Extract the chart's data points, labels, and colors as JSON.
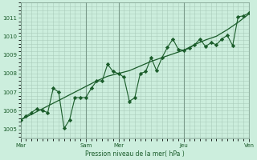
{
  "background_color": "#cceedd",
  "grid_color": "#aaccbb",
  "line_color": "#1a5c2a",
  "marker_color": "#1a5c2a",
  "xlabel": "Pression niveau de la mer( hPa )",
  "ylim": [
    1004.5,
    1011.8
  ],
  "yticks": [
    1005,
    1006,
    1007,
    1008,
    1009,
    1010,
    1011
  ],
  "xlim": [
    0,
    42
  ],
  "xtick_labels": [
    "Mar",
    "Sam",
    "Mer",
    "Jeu",
    "Ven"
  ],
  "xtick_positions": [
    0,
    12,
    18,
    30,
    42
  ],
  "vline_positions": [
    0,
    12,
    18,
    30,
    42
  ],
  "smooth_x": [
    0,
    2,
    4,
    6,
    8,
    10,
    12,
    14,
    16,
    18,
    20,
    22,
    24,
    26,
    28,
    30,
    32,
    34,
    36,
    38,
    40,
    42
  ],
  "smooth_y": [
    1005.5,
    1005.8,
    1006.1,
    1006.4,
    1006.7,
    1007.0,
    1007.3,
    1007.6,
    1007.85,
    1008.0,
    1008.15,
    1008.4,
    1008.65,
    1008.85,
    1009.05,
    1009.25,
    1009.55,
    1009.8,
    1010.0,
    1010.35,
    1010.75,
    1011.2
  ],
  "jagged_x": [
    0,
    1,
    2,
    3,
    4,
    5,
    6,
    7,
    8,
    9,
    10,
    11,
    12,
    13,
    14,
    15,
    16,
    17,
    18,
    19,
    20,
    21,
    22,
    23,
    24,
    25,
    26,
    27,
    28,
    29,
    30,
    31,
    32,
    33,
    34,
    35,
    36,
    37,
    38,
    39,
    40,
    41,
    42
  ],
  "jagged_y": [
    1005.5,
    1005.7,
    1005.9,
    1006.1,
    1006.0,
    1005.9,
    1007.2,
    1007.0,
    1005.05,
    1005.5,
    1006.7,
    1006.7,
    1006.7,
    1007.2,
    1007.6,
    1007.6,
    1008.5,
    1008.1,
    1008.0,
    1007.8,
    1006.5,
    1006.7,
    1008.0,
    1008.1,
    1008.85,
    1008.15,
    1008.85,
    1009.4,
    1009.85,
    1009.3,
    1009.25,
    1009.35,
    1009.55,
    1009.85,
    1009.45,
    1009.65,
    1009.55,
    1009.85,
    1010.05,
    1009.5,
    1011.05,
    1011.1,
    1011.25
  ]
}
